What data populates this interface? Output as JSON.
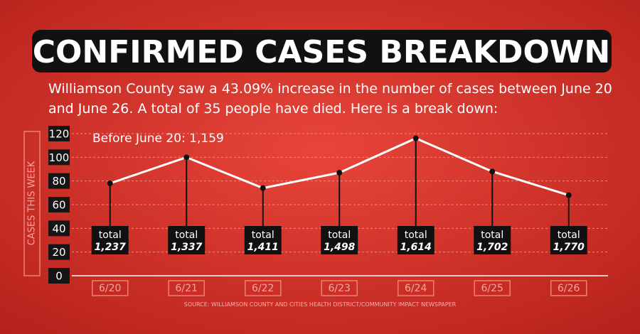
{
  "chart_data": {
    "type": "line",
    "title": "CONFIRMED CASES BREAKDOWN",
    "subtitle": [
      "Williamson County saw a 43.09% increase in the number of cases between June 20",
      "and June 26. A total of 35 people have died. Here is a break down:"
    ],
    "annotation": "Before June 20: 1,159",
    "y_label": "CASES THIS WEEK",
    "source": "SOURCE: WILLIAMSON COUNTY AND CITIES HEALTH DISTRICT/COMMUNITY IMPACT NEWSPAPER",
    "categories": [
      "6/20",
      "6/21",
      "6/22",
      "6/23",
      "6/24",
      "6/25",
      "6/26"
    ],
    "values": [
      78,
      100,
      74,
      87,
      116,
      88,
      68
    ],
    "color": "#ffffff",
    "total_caption": "total",
    "total_labels": [
      "1,237",
      "1,337",
      "1,411",
      "1,498",
      "1,614",
      "1,702",
      "1,770"
    ],
    "ylim": [
      0,
      120
    ],
    "yticks": [
      0,
      20,
      40,
      60,
      80,
      100,
      120
    ],
    "grid": true
  }
}
